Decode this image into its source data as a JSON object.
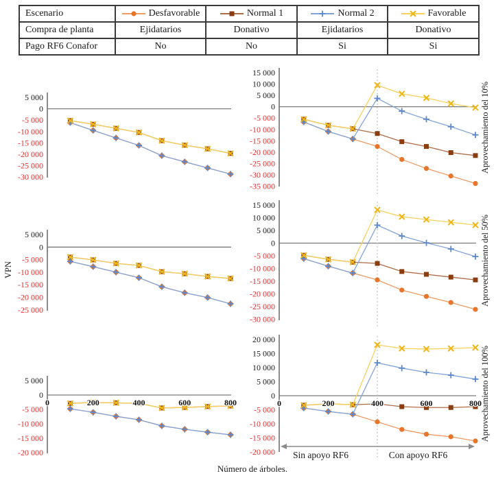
{
  "table": {
    "rows": [
      {
        "header": "Escenario"
      },
      {
        "header": "Compra de planta",
        "cells": [
          "Ejidatarios",
          "Donativo",
          "Ejidatarios",
          "Donativo"
        ]
      },
      {
        "header": "Pago RF6 Conafor",
        "cells": [
          "No",
          "No",
          "Si",
          "Si"
        ]
      }
    ]
  },
  "legend": [
    {
      "name": "Desfavorable",
      "marker": "circle",
      "color": "#E8752C",
      "line_color": "#F09A62"
    },
    {
      "name": "Normal 1",
      "marker": "square",
      "color": "#8A3D10",
      "line_color": "#B06A45"
    },
    {
      "name": "Normal 2",
      "marker": "plus",
      "color": "#5B87CC",
      "line_color": "#82A3DA"
    },
    {
      "name": "Favorable",
      "marker": "x",
      "color": "#EFB517",
      "line_color": "#F8D158"
    }
  ],
  "labels": {
    "y_axis": "VPN",
    "x_axis": "Número de árboles."
  },
  "colors": {
    "negative_tick": "#ee2c2c",
    "positive_tick": "#1a1a1a",
    "axis": "#8c8c8c",
    "zero_line": "#7a7a7a",
    "divider_dash": "#c8c8c8",
    "arrow": "#8c8c8c"
  },
  "chart_data": [
    {
      "id": "left-top",
      "type": "line",
      "x": [
        100,
        200,
        300,
        400,
        500,
        600,
        700,
        800
      ],
      "x_ticks": [
        0,
        200,
        400,
        600,
        800
      ],
      "show_x_labels": false,
      "ylim": [
        -30000,
        5000
      ],
      "ytick_step": 5000,
      "series": [
        {
          "name": "Desfavorable",
          "values": [
            -6100,
            -9500,
            -12800,
            -16100,
            -20600,
            -23300,
            -26000,
            -28700
          ]
        },
        {
          "name": "Normal 1",
          "values": [
            -5200,
            -6800,
            -8600,
            -10400,
            -14000,
            -16000,
            -17600,
            -19600
          ]
        },
        {
          "name": "Normal 2",
          "values": [
            -6100,
            -9500,
            -12800,
            -16100,
            -20600,
            -23300,
            -26000,
            -28700
          ]
        },
        {
          "name": "Favorable",
          "values": [
            -5200,
            -6800,
            -8600,
            -10400,
            -14000,
            -16000,
            -17600,
            -19600
          ]
        }
      ]
    },
    {
      "id": "left-middle",
      "type": "line",
      "x": [
        100,
        200,
        300,
        400,
        500,
        600,
        700,
        800
      ],
      "x_ticks": [
        0,
        200,
        400,
        600,
        800
      ],
      "show_x_labels": false,
      "ylim": [
        -25000,
        5000
      ],
      "ytick_step": 5000,
      "series": [
        {
          "name": "Desfavorable",
          "values": [
            -5700,
            -7800,
            -10000,
            -12200,
            -15800,
            -18200,
            -20100,
            -22600
          ]
        },
        {
          "name": "Normal 1",
          "values": [
            -4000,
            -5100,
            -6500,
            -7300,
            -9800,
            -10600,
            -11700,
            -12500
          ]
        },
        {
          "name": "Normal 2",
          "values": [
            -5700,
            -7800,
            -10000,
            -12200,
            -15800,
            -18200,
            -20100,
            -22600
          ]
        },
        {
          "name": "Favorable",
          "values": [
            -4000,
            -5100,
            -6500,
            -7300,
            -9800,
            -10600,
            -11700,
            -12500
          ]
        }
      ]
    },
    {
      "id": "left-bottom",
      "type": "line",
      "x": [
        100,
        200,
        300,
        400,
        500,
        600,
        700,
        800
      ],
      "x_ticks": [
        0,
        200,
        400,
        600,
        800
      ],
      "show_x_labels": true,
      "ylim": [
        -20000,
        5000
      ],
      "ytick_step": 5000,
      "series": [
        {
          "name": "Desfavorable",
          "values": [
            -4800,
            -6000,
            -7400,
            -8600,
            -10700,
            -11900,
            -12900,
            -13800
          ]
        },
        {
          "name": "Normal 1",
          "values": [
            -2900,
            -2600,
            -2700,
            -2900,
            -4500,
            -4300,
            -4000,
            -3800
          ]
        },
        {
          "name": "Normal 2",
          "values": [
            -4800,
            -6000,
            -7400,
            -8600,
            -10700,
            -11900,
            -12900,
            -13800
          ]
        },
        {
          "name": "Favorable",
          "values": [
            -2900,
            -2600,
            -2700,
            -2900,
            -4500,
            -4300,
            -4000,
            -3800
          ]
        }
      ]
    },
    {
      "id": "right-top",
      "type": "line",
      "right_label": "Aprovechamiento del 10%",
      "x": [
        100,
        200,
        300,
        400,
        500,
        600,
        700,
        800
      ],
      "x_ticks": [
        0,
        200,
        400,
        600,
        800
      ],
      "show_x_labels": false,
      "rf6_divider_x": 400,
      "ylim": [
        -35000,
        15000
      ],
      "ytick_step": 5000,
      "series": [
        {
          "name": "Desfavorable",
          "values": [
            -6700,
            -10900,
            -14200,
            -17500,
            -23200,
            -27200,
            -30500,
            -33800
          ]
        },
        {
          "name": "Normal 1",
          "values": [
            -5500,
            -8200,
            -9700,
            -11800,
            -15400,
            -17500,
            -20200,
            -21500
          ]
        },
        {
          "name": "Normal 2",
          "values": [
            -6700,
            -10900,
            -14200,
            3700,
            -1900,
            -5500,
            -8800,
            -12400
          ]
        },
        {
          "name": "Favorable",
          "values": [
            -5500,
            -8200,
            -9700,
            9500,
            5700,
            3900,
            1400,
            -400
          ]
        }
      ]
    },
    {
      "id": "right-middle",
      "type": "line",
      "right_label": "Aprovechamiento del 50%",
      "x": [
        100,
        200,
        300,
        400,
        500,
        600,
        700,
        800
      ],
      "x_ticks": [
        0,
        200,
        400,
        600,
        800
      ],
      "show_x_labels": false,
      "rf6_divider_x": 400,
      "ylim": [
        -30000,
        15000
      ],
      "ytick_step": 5000,
      "series": [
        {
          "name": "Desfavorable",
          "values": [
            -6100,
            -9100,
            -11800,
            -14500,
            -18500,
            -21000,
            -23400,
            -26100
          ]
        },
        {
          "name": "Normal 1",
          "values": [
            -4800,
            -6400,
            -7500,
            -8000,
            -11200,
            -12300,
            -13400,
            -14500
          ]
        },
        {
          "name": "Normal 2",
          "values": [
            -6100,
            -9100,
            -11800,
            7100,
            2800,
            100,
            -2300,
            -5300
          ]
        },
        {
          "name": "Favorable",
          "values": [
            -4800,
            -6400,
            -7500,
            13100,
            10400,
            9300,
            8200,
            7100
          ]
        }
      ]
    },
    {
      "id": "right-bottom",
      "type": "line",
      "right_label": "Aprovechamiento del 100%",
      "x": [
        100,
        200,
        300,
        400,
        500,
        600,
        700,
        800
      ],
      "x_ticks": [
        0,
        200,
        400,
        600,
        800
      ],
      "show_x_labels": true,
      "rf6_divider_x": 400,
      "ylim": [
        -20000,
        20000
      ],
      "ytick_step": 5000,
      "annotations": {
        "left": "Sin apoyo RF6",
        "right": "Con apoyo RF6"
      },
      "series": [
        {
          "name": "Desfavorable",
          "values": [
            -4400,
            -5600,
            -6600,
            -9300,
            -12000,
            -13700,
            -14600,
            -16100
          ]
        },
        {
          "name": "Normal 1",
          "values": [
            -3400,
            -2900,
            -3200,
            -2900,
            -3900,
            -4200,
            -4200,
            -3900
          ]
        },
        {
          "name": "Normal 2",
          "values": [
            -4400,
            -5600,
            -6600,
            11700,
            9800,
            8300,
            7300,
            5900
          ]
        },
        {
          "name": "Favorable",
          "values": [
            -3400,
            -2900,
            -3200,
            18100,
            16800,
            16600,
            16800,
            17100
          ]
        }
      ]
    }
  ]
}
